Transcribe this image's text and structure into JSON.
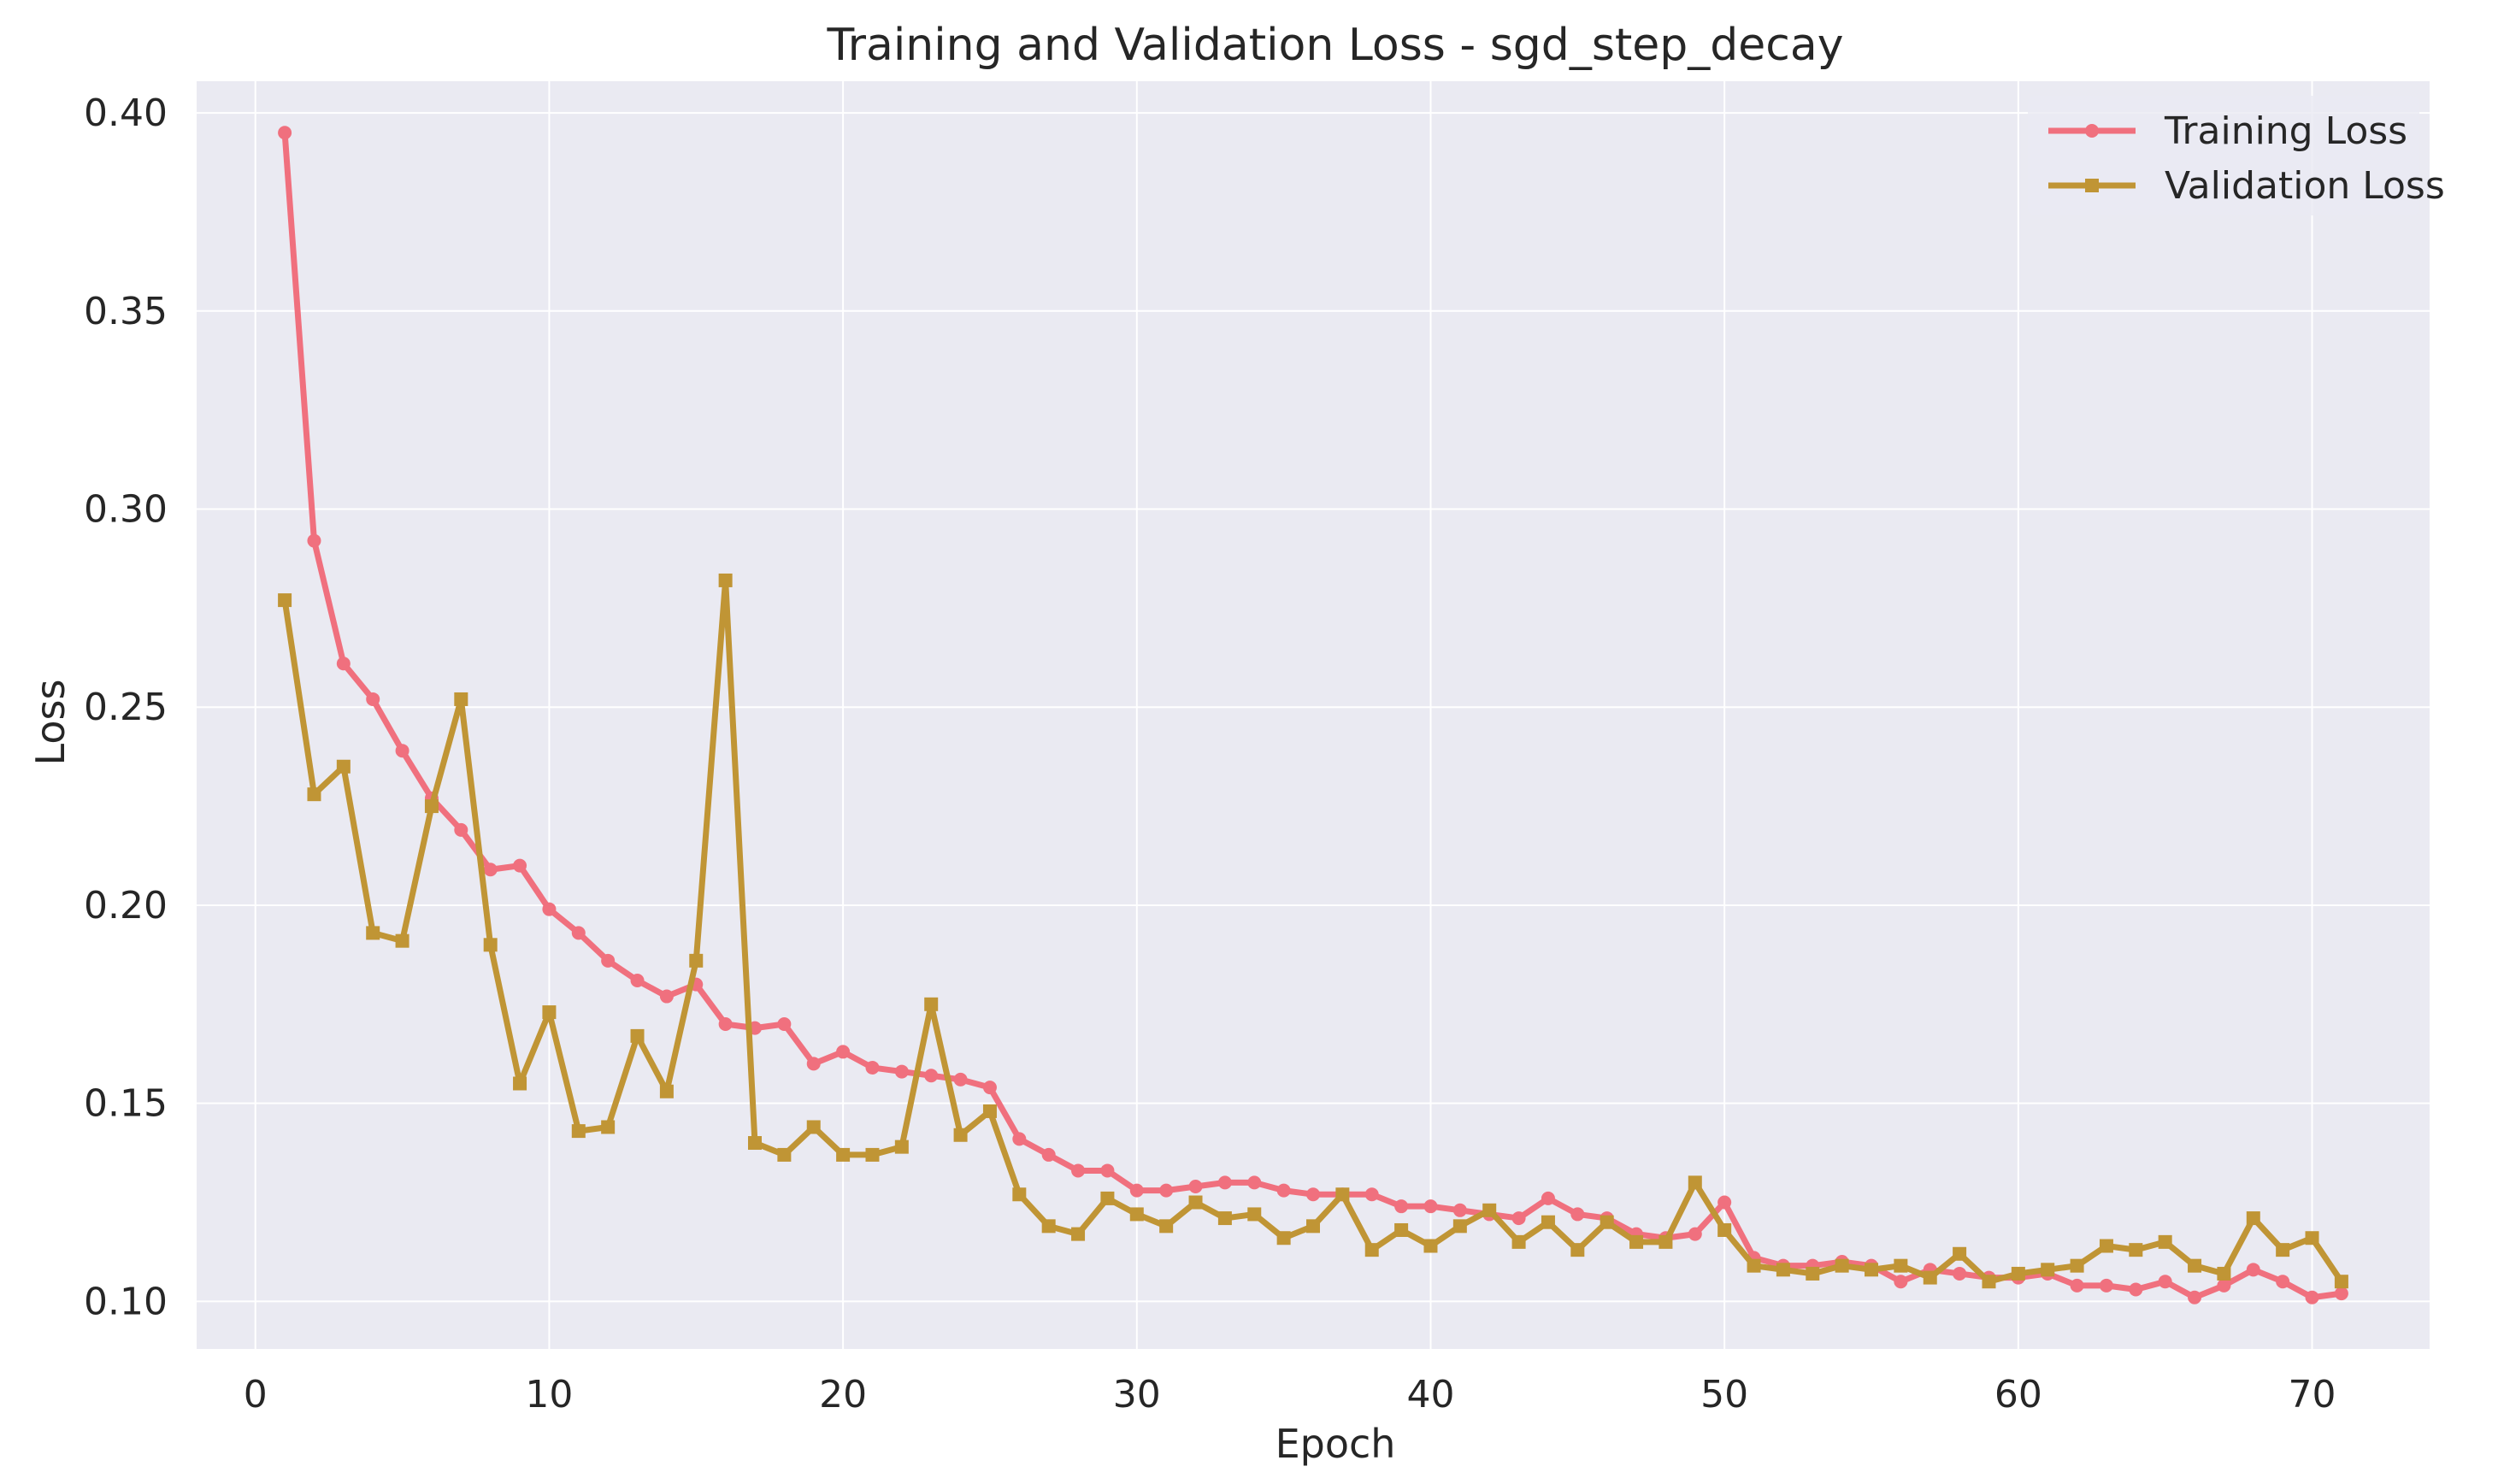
{
  "chart_data": {
    "type": "line",
    "title": "Training and Validation Loss - sgd_step_decay",
    "xlabel": "Epoch",
    "ylabel": "Loss",
    "xlim": [
      -2,
      74
    ],
    "ylim": [
      0.088,
      0.408
    ],
    "xticks": [
      0,
      10,
      20,
      30,
      40,
      50,
      60,
      70
    ],
    "xtick_labels": [
      "0",
      "10",
      "20",
      "30",
      "40",
      "50",
      "60",
      "70"
    ],
    "yticks": [
      0.1,
      0.15,
      0.2,
      0.25,
      0.3,
      0.35,
      0.4
    ],
    "ytick_labels": [
      "0.10",
      "0.15",
      "0.20",
      "0.25",
      "0.30",
      "0.35",
      "0.40"
    ],
    "grid": true,
    "legend_position": "top-right",
    "x": [
      1,
      2,
      3,
      4,
      5,
      6,
      7,
      8,
      9,
      10,
      11,
      12,
      13,
      14,
      15,
      16,
      17,
      18,
      19,
      20,
      21,
      22,
      23,
      24,
      25,
      26,
      27,
      28,
      29,
      30,
      31,
      32,
      33,
      34,
      35,
      36,
      37,
      38,
      39,
      40,
      41,
      42,
      43,
      44,
      45,
      46,
      47,
      48,
      49,
      50,
      51,
      52,
      53,
      54,
      55,
      56,
      57,
      58,
      59,
      60,
      61,
      62,
      63,
      64,
      65,
      66,
      67,
      68,
      69,
      70,
      71
    ],
    "series": [
      {
        "name": "Training Loss",
        "color": "#f0707e",
        "marker": "circle",
        "values": [
          0.395,
          0.292,
          0.261,
          0.252,
          0.239,
          0.227,
          0.219,
          0.209,
          0.21,
          0.199,
          0.193,
          0.186,
          0.181,
          0.177,
          0.18,
          0.17,
          0.169,
          0.17,
          0.16,
          0.163,
          0.159,
          0.158,
          0.157,
          0.156,
          0.154,
          0.141,
          0.137,
          0.133,
          0.133,
          0.128,
          0.128,
          0.129,
          0.13,
          0.13,
          0.128,
          0.127,
          0.127,
          0.127,
          0.124,
          0.124,
          0.123,
          0.122,
          0.121,
          0.126,
          0.122,
          0.121,
          0.117,
          0.116,
          0.117,
          0.125,
          0.111,
          0.109,
          0.109,
          0.11,
          0.109,
          0.105,
          0.108,
          0.107,
          0.106,
          0.106,
          0.107,
          0.104,
          0.104,
          0.103,
          0.105,
          0.101,
          0.104,
          0.108,
          0.105,
          0.101,
          0.102
        ]
      },
      {
        "name": "Validation Loss",
        "color": "#c09535",
        "marker": "square",
        "values": [
          0.277,
          0.228,
          0.235,
          0.193,
          0.191,
          0.225,
          0.252,
          0.19,
          0.155,
          0.173,
          0.143,
          0.144,
          0.167,
          0.153,
          0.186,
          0.282,
          0.14,
          0.137,
          0.144,
          0.137,
          0.137,
          0.139,
          0.175,
          0.142,
          0.148,
          0.127,
          0.119,
          0.117,
          0.126,
          0.122,
          0.119,
          0.125,
          0.121,
          0.122,
          0.116,
          0.119,
          0.127,
          0.113,
          0.118,
          0.114,
          0.119,
          0.123,
          0.115,
          0.12,
          0.113,
          0.12,
          0.115,
          0.115,
          0.13,
          0.118,
          0.109,
          0.108,
          0.107,
          0.109,
          0.108,
          0.109,
          0.106,
          0.112,
          0.105,
          0.107,
          0.108,
          0.109,
          0.114,
          0.113,
          0.115,
          0.109,
          0.107,
          0.121,
          0.113,
          0.116,
          0.105
        ]
      }
    ]
  }
}
